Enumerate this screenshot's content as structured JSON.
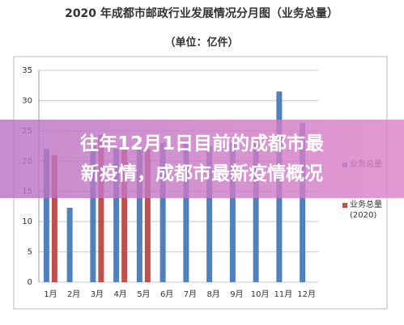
{
  "chart_data": {
    "type": "bar",
    "title": "2020 年成都市邮政行业发展情况分月图（业务总量）",
    "subtitle": "（单位：亿件）",
    "categories": [
      "1月",
      "2月",
      "3月",
      "4月",
      "5月",
      "6月",
      "7月",
      "8月",
      "9月",
      "10月",
      "11月",
      "12月"
    ],
    "series": [
      {
        "name": "业务总量",
        "color": "#4f81bd",
        "values": [
          22,
          12.3,
          22.5,
          22,
          22,
          23,
          23,
          22.5,
          23,
          23.5,
          31.5,
          26.3
        ]
      },
      {
        "name": "业务总量 (2020)",
        "color": "#c0504d",
        "values": [
          21,
          null,
          24.3,
          22,
          22,
          null,
          null,
          null,
          null,
          null,
          null,
          null
        ]
      }
    ],
    "ylim": [
      0,
      35
    ],
    "yticks": [
      0,
      5,
      10,
      15,
      20,
      25,
      30,
      35
    ],
    "grid": true,
    "legend": "right"
  },
  "overlay": {
    "lines": [
      "往年12月1日目前的成都市最",
      "新疫情，成都市最新疫情概况"
    ]
  }
}
